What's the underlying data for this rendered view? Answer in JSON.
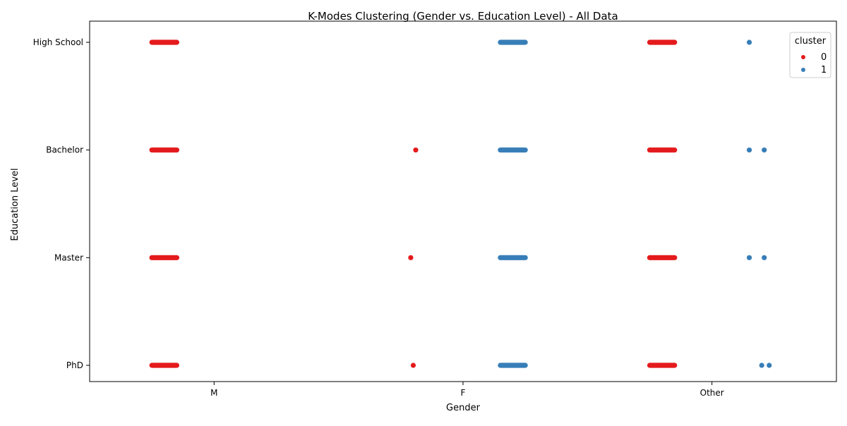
{
  "chart_data": {
    "type": "scatter",
    "title": "K-Modes Clustering (Gender vs. Education Level) - All Data",
    "xlabel": "Gender",
    "ylabel": "Education Level",
    "x_categories": [
      "M",
      "F",
      "Other"
    ],
    "y_categories": [
      "High School",
      "Bachelor",
      "Master",
      "PhD"
    ],
    "grid": false,
    "legend": {
      "title": "cluster",
      "placement": "top-right"
    },
    "series": [
      {
        "name": "0",
        "color": "#e41a1c",
        "bands": [
          {
            "x": "M",
            "y": "High School",
            "from": -0.25,
            "to": -0.15
          },
          {
            "x": "M",
            "y": "Bachelor",
            "from": -0.25,
            "to": -0.15
          },
          {
            "x": "M",
            "y": "Master",
            "from": -0.25,
            "to": -0.15
          },
          {
            "x": "M",
            "y": "PhD",
            "from": -0.25,
            "to": -0.15
          },
          {
            "x": "Other",
            "y": "High School",
            "from": -0.25,
            "to": -0.15
          },
          {
            "x": "Other",
            "y": "Bachelor",
            "from": -0.25,
            "to": -0.15
          },
          {
            "x": "Other",
            "y": "Master",
            "from": -0.25,
            "to": -0.15
          },
          {
            "x": "Other",
            "y": "PhD",
            "from": -0.25,
            "to": -0.15
          }
        ],
        "points": [
          {
            "x": "F",
            "y": "Bachelor",
            "offset": -0.19
          },
          {
            "x": "F",
            "y": "Master",
            "offset": -0.21
          },
          {
            "x": "F",
            "y": "PhD",
            "offset": -0.2
          }
        ]
      },
      {
        "name": "1",
        "color": "#377eb8",
        "bands": [
          {
            "x": "F",
            "y": "High School",
            "from": 0.15,
            "to": 0.25
          },
          {
            "x": "F",
            "y": "Bachelor",
            "from": 0.15,
            "to": 0.25
          },
          {
            "x": "F",
            "y": "Master",
            "from": 0.15,
            "to": 0.25
          },
          {
            "x": "F",
            "y": "PhD",
            "from": 0.15,
            "to": 0.25
          }
        ],
        "points": [
          {
            "x": "Other",
            "y": "High School",
            "offset": 0.15
          },
          {
            "x": "Other",
            "y": "Bachelor",
            "offset": 0.15
          },
          {
            "x": "Other",
            "y": "Bachelor",
            "offset": 0.21
          },
          {
            "x": "Other",
            "y": "Master",
            "offset": 0.15
          },
          {
            "x": "Other",
            "y": "Master",
            "offset": 0.21
          },
          {
            "x": "Other",
            "y": "PhD",
            "offset": 0.2
          },
          {
            "x": "Other",
            "y": "PhD",
            "offset": 0.23
          }
        ]
      }
    ]
  }
}
